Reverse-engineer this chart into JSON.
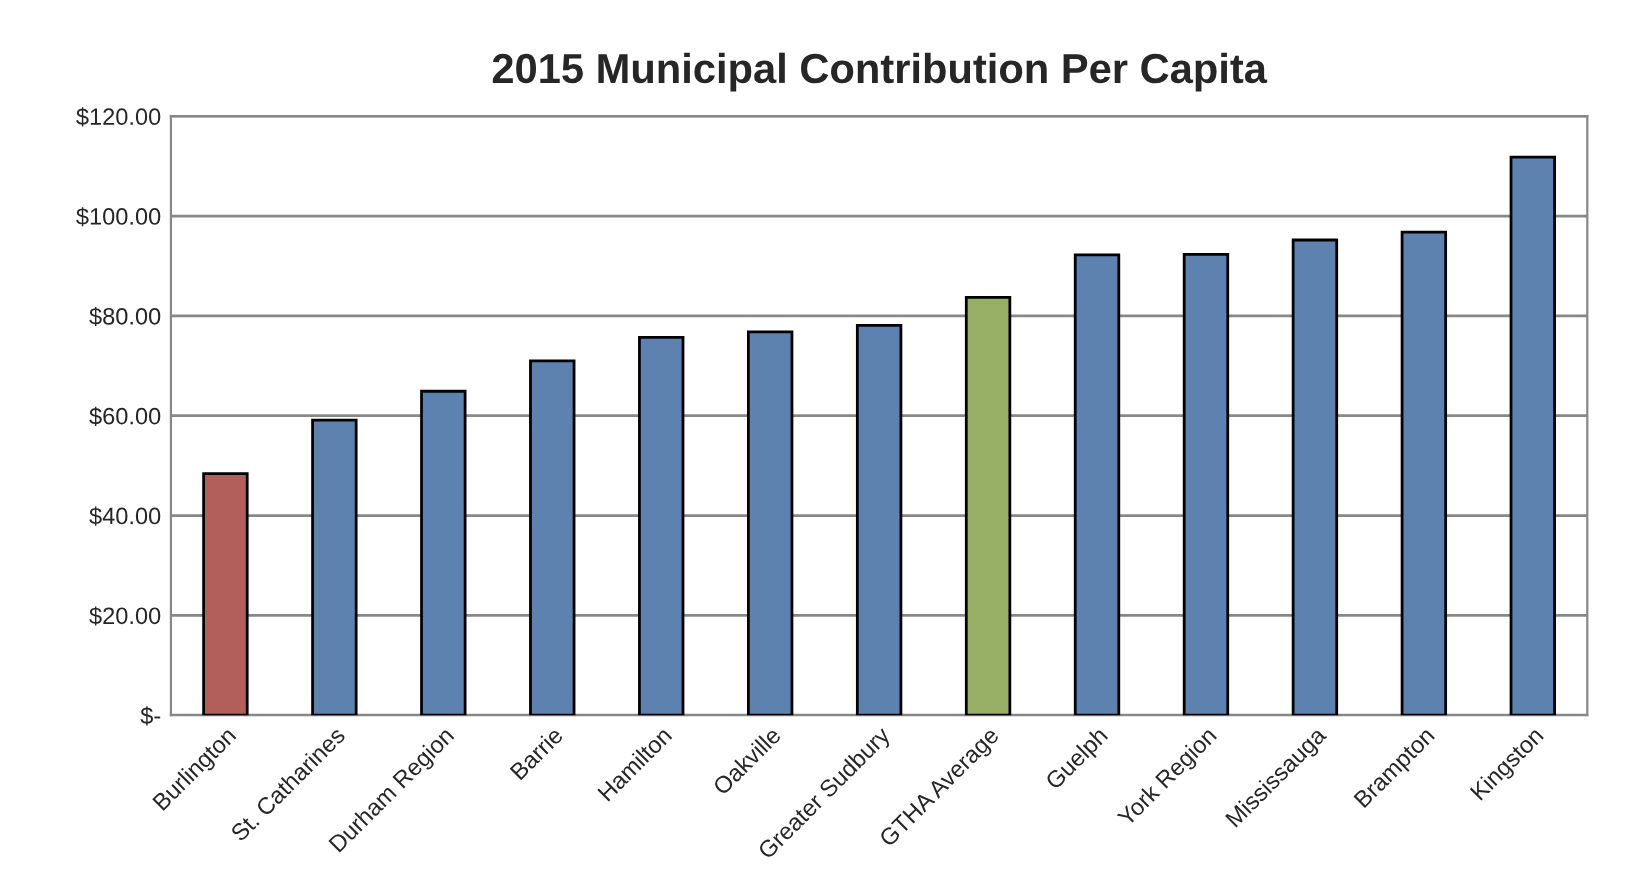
{
  "chart_data": {
    "type": "bar",
    "title": "2015 Municipal Contribution Per Capita",
    "categories": [
      "Burlington",
      "St. Catharines",
      "Durham Region",
      "Barrie",
      "Hamilton",
      "Oakville",
      "Greater Sudbury",
      "GTHA Average",
      "Guelph",
      "York Region",
      "Mississauga",
      "Brampton",
      "Kingston"
    ],
    "values": [
      48.4,
      59.1,
      64.9,
      71.0,
      75.7,
      76.8,
      78.1,
      83.7,
      92.2,
      92.3,
      95.2,
      96.8,
      111.8
    ],
    "colors": [
      "#c0504d",
      "#4f81bd",
      "#4f81bd",
      "#4f81bd",
      "#4f81bd",
      "#4f81bd",
      "#4f81bd",
      "#9bbb59",
      "#4f81bd",
      "#4f81bd",
      "#4f81bd",
      "#4f81bd",
      "#4f81bd"
    ],
    "ylim": [
      0,
      120
    ],
    "yticks": [
      {
        "value": 0,
        "label": "$-"
      },
      {
        "value": 20,
        "label": "$20.00"
      },
      {
        "value": 40,
        "label": "$40.00"
      },
      {
        "value": 60,
        "label": "$60.00"
      },
      {
        "value": 80,
        "label": "$80.00"
      },
      {
        "value": 100,
        "label": "$100.00"
      },
      {
        "value": 120,
        "label": "$120.00"
      }
    ],
    "grid": "y",
    "legend": false
  }
}
